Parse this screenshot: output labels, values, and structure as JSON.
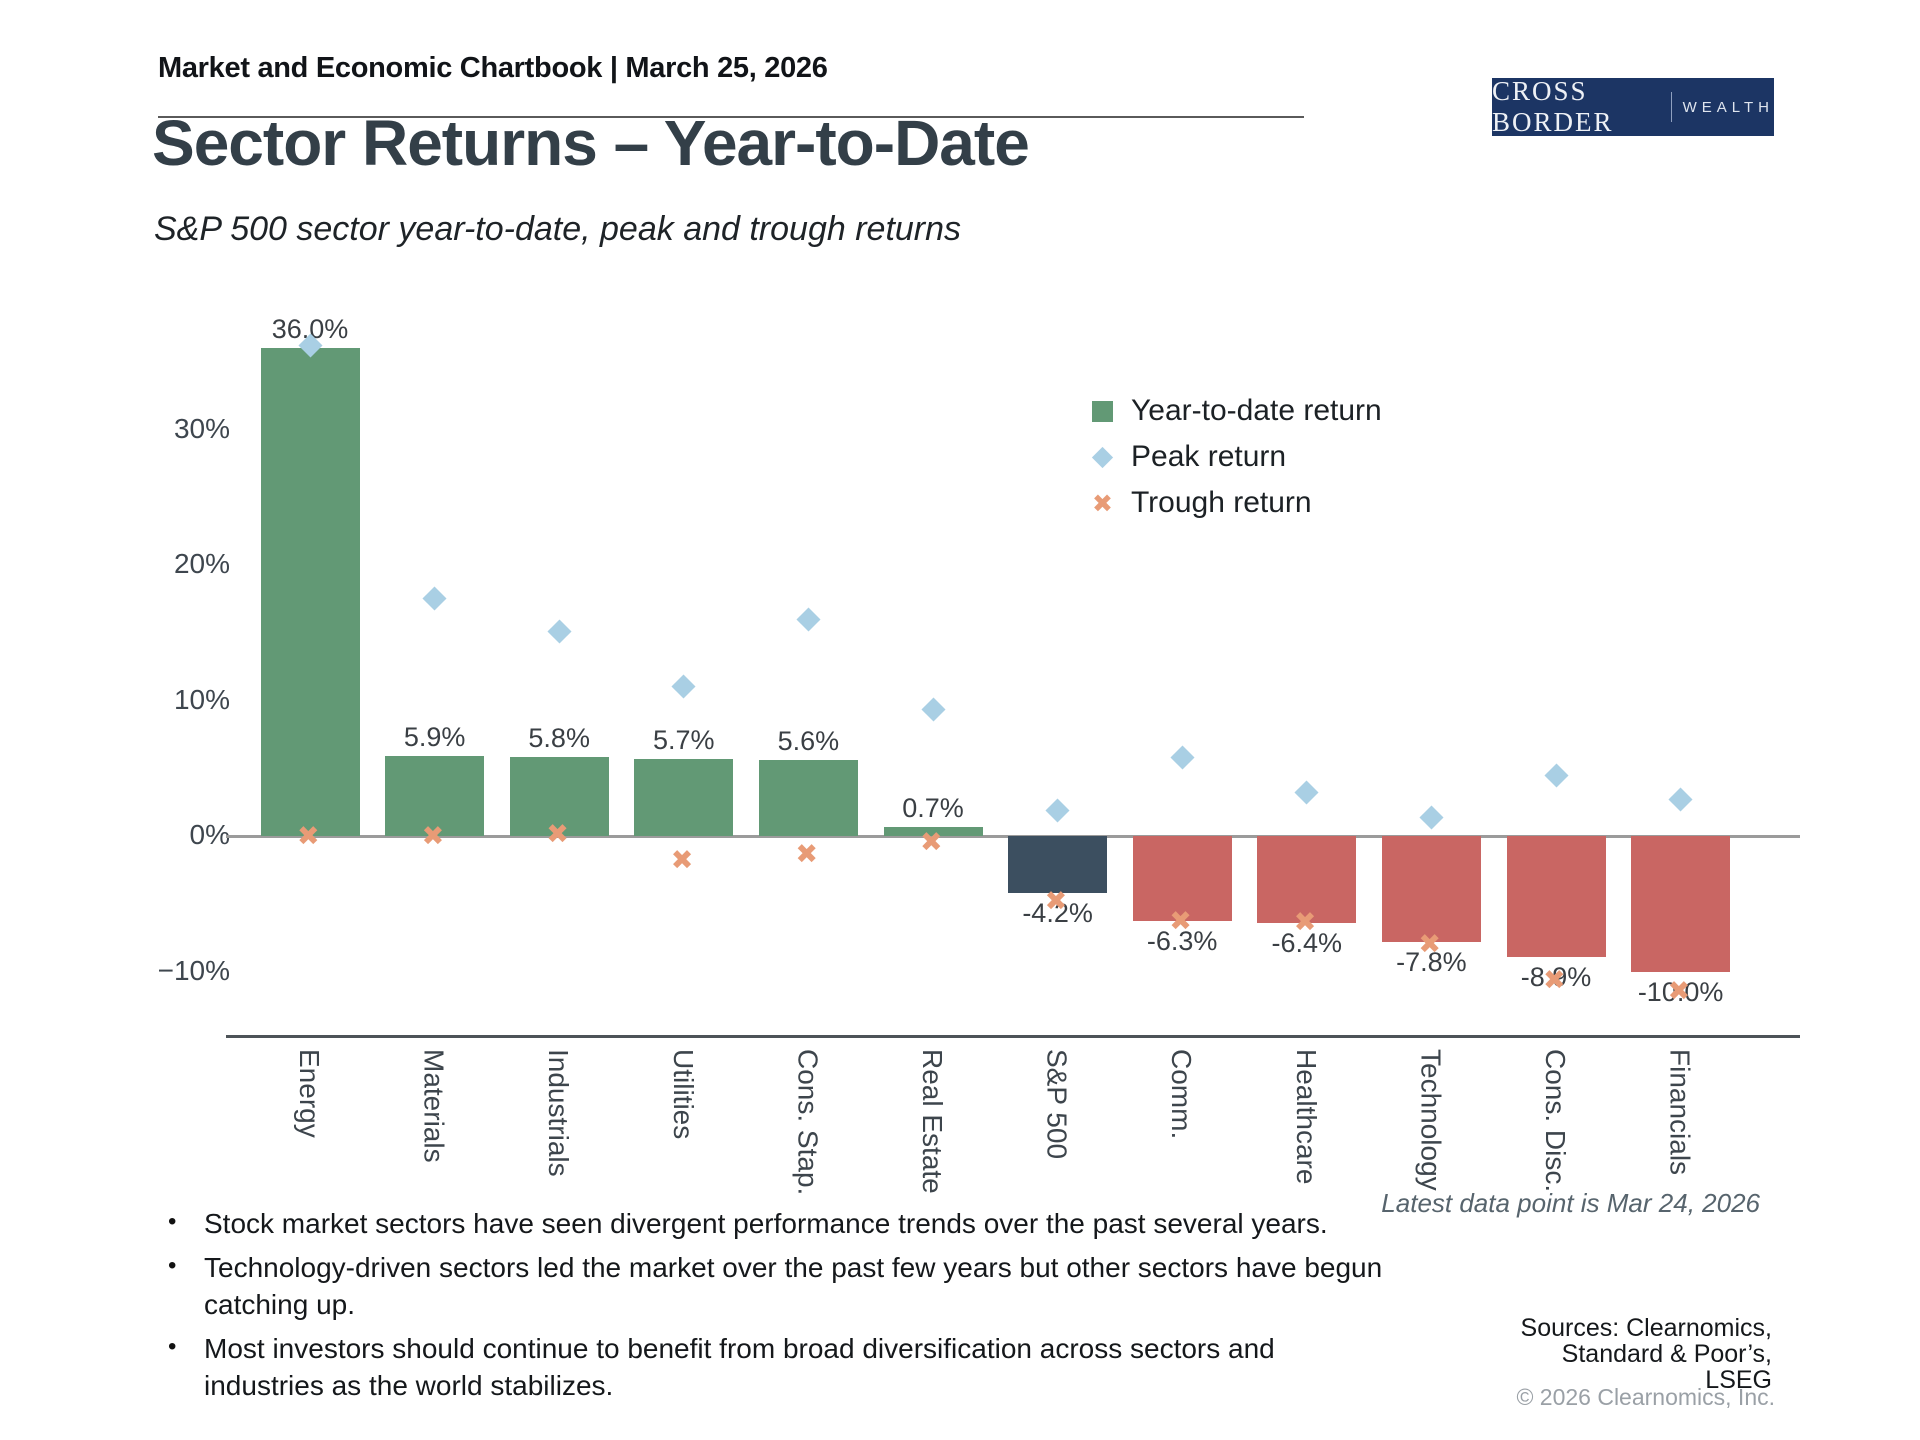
{
  "header": {
    "title": "Market and Economic Chartbook | March 25, 2026"
  },
  "logo": {
    "primary": "CROSS BORDER",
    "secondary": "WEALTH"
  },
  "page": {
    "title": "Sector Returns – Year-to-Date",
    "subtitle": "S&P 500 sector year-to-date, peak and trough returns"
  },
  "chart_data": {
    "type": "bar",
    "title": "Sector Returns – Year-to-Date",
    "categories": [
      "Energy",
      "Materials",
      "Industrials",
      "Utilities",
      "Cons. Stap.",
      "Real Estate",
      "S&P 500",
      "Comm.",
      "Healthcare",
      "Technology",
      "Cons. Disc.",
      "Financials"
    ],
    "series": [
      {
        "name": "Year-to-date return",
        "type": "bar",
        "values": [
          36.0,
          5.9,
          5.8,
          5.7,
          5.6,
          0.7,
          -4.2,
          -6.3,
          -6.4,
          -7.8,
          -8.9,
          -10.0
        ]
      },
      {
        "name": "Peak return",
        "type": "scatter-diamond",
        "values": [
          36.2,
          17.5,
          15.1,
          11.0,
          16.0,
          9.3,
          1.9,
          5.8,
          3.2,
          1.4,
          4.5,
          2.7
        ]
      },
      {
        "name": "Trough return",
        "type": "scatter-x",
        "values": [
          0.0,
          0.0,
          0.1,
          -1.8,
          -1.4,
          -0.5,
          -4.8,
          -6.3,
          -6.4,
          -8.0,
          -10.7,
          -11.5
        ]
      }
    ],
    "bar_labels": [
      "36.0%",
      "5.9%",
      "5.8%",
      "5.7%",
      "5.6%",
      "0.7%",
      "-4.2%",
      "-6.3%",
      "-6.4%",
      "-7.8%",
      "-8.9%",
      "-10.0%"
    ],
    "highlight_category": "S&P 500",
    "highlight_index": 6,
    "yticks": [
      {
        "value": 30,
        "label": "30%"
      },
      {
        "value": 20,
        "label": "20%"
      },
      {
        "value": 10,
        "label": "10%"
      },
      {
        "value": 0,
        "label": "0%"
      },
      {
        "value": -10,
        "label": "−10%"
      }
    ],
    "ylim": [
      -14.5,
      37.5
    ],
    "grid": false,
    "legend_position": "upper-right",
    "colors": {
      "bar_positive": "#629975",
      "bar_negative": "#c96663",
      "bar_highlight": "#3c4f60",
      "peak_marker": "#a9cfe4",
      "trough_marker": "#e89b76"
    }
  },
  "chart_note": "Latest data point is Mar 24, 2026",
  "bullets": [
    "Stock market sectors have seen divergent performance trends over the past several years.",
    "Technology-driven sectors led the market over the past few years but other sectors have begun catching up.",
    "Most investors should continue to benefit from broad diversification across sectors and industries as the world stabilizes."
  ],
  "sources": {
    "lines": [
      "Sources: Clearnomics,",
      "Standard & Poor’s,",
      "LSEG"
    ],
    "copyright": "© 2026 Clearnomics, Inc."
  }
}
